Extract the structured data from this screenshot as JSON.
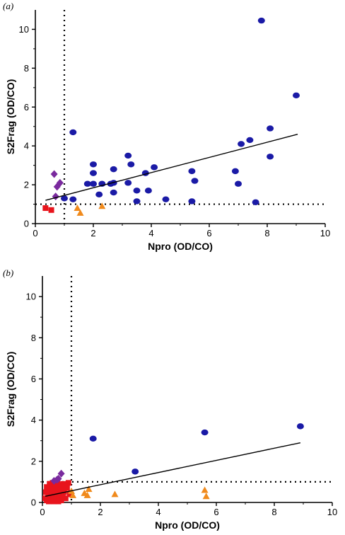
{
  "chart_data": [
    {
      "panel_label": "(a)",
      "type": "scatter",
      "xlabel": "Npro (OD/CO)",
      "ylabel": "S2Frag (OD/CO)",
      "xlim": [
        0,
        10
      ],
      "ylim": [
        0,
        11
      ],
      "xticks": [
        0,
        2,
        4,
        6,
        8,
        10
      ],
      "yticks": [
        0,
        2,
        4,
        6,
        8,
        10
      ],
      "cutoff_x": 1,
      "cutoff_y": 1,
      "regression": {
        "x": [
          0.35,
          9.05
        ],
        "y": [
          1.2,
          4.6
        ]
      },
      "colors": {
        "blue": "#1a1aa6",
        "red": "#e8141c",
        "purple": "#7a2a9e",
        "orange": "#f08a1c"
      },
      "series": [
        {
          "marker": "circle",
          "color": "blue",
          "points": [
            [
              1.0,
              1.3
            ],
            [
              1.3,
              1.25
            ],
            [
              1.3,
              4.7
            ],
            [
              1.8,
              2.05
            ],
            [
              2.0,
              2.05
            ],
            [
              2.0,
              2.6
            ],
            [
              2.0,
              3.05
            ],
            [
              2.2,
              1.5
            ],
            [
              2.3,
              2.05
            ],
            [
              2.6,
              2.05
            ],
            [
              2.7,
              2.1
            ],
            [
              2.7,
              1.6
            ],
            [
              2.7,
              2.8
            ],
            [
              3.2,
              2.1
            ],
            [
              3.2,
              3.5
            ],
            [
              3.3,
              3.05
            ],
            [
              3.5,
              1.15
            ],
            [
              3.5,
              1.7
            ],
            [
              3.8,
              2.6
            ],
            [
              3.9,
              1.7
            ],
            [
              4.1,
              2.9
            ],
            [
              4.5,
              1.25
            ],
            [
              5.4,
              2.7
            ],
            [
              5.4,
              1.15
            ],
            [
              5.5,
              2.2
            ],
            [
              6.9,
              2.7
            ],
            [
              7.0,
              2.05
            ],
            [
              7.1,
              4.1
            ],
            [
              7.4,
              4.3
            ],
            [
              7.6,
              1.1
            ],
            [
              7.8,
              10.45
            ],
            [
              8.1,
              3.45
            ],
            [
              8.1,
              4.9
            ],
            [
              9.0,
              6.6
            ]
          ]
        },
        {
          "marker": "square",
          "color": "red",
          "points": [
            [
              0.35,
              0.8
            ],
            [
              0.55,
              0.7
            ]
          ]
        },
        {
          "marker": "diamond",
          "color": "purple",
          "points": [
            [
              0.65,
              2.55
            ],
            [
              0.7,
              1.4
            ],
            [
              0.75,
              1.9
            ],
            [
              0.85,
              2.1
            ]
          ]
        },
        {
          "marker": "triangle",
          "color": "orange",
          "points": [
            [
              1.45,
              0.8
            ],
            [
              1.55,
              0.55
            ],
            [
              2.3,
              0.9
            ]
          ]
        }
      ]
    },
    {
      "panel_label": "(b)",
      "type": "scatter",
      "xlabel": "Npro (OD/CO)",
      "ylabel": "S2Frag (OD/CO)",
      "xlim": [
        0,
        10
      ],
      "ylim": [
        0,
        11
      ],
      "xticks": [
        0,
        2,
        4,
        6,
        8,
        10
      ],
      "yticks": [
        0,
        2,
        4,
        6,
        8,
        10
      ],
      "cutoff_x": 1,
      "cutoff_y": 1,
      "regression": {
        "x": [
          0.1,
          8.9
        ],
        "y": [
          0.3,
          2.9
        ]
      },
      "colors": {
        "blue": "#1a1aa6",
        "red": "#e8141c",
        "purple": "#7a2a9e",
        "orange": "#f08a1c"
      },
      "series": [
        {
          "marker": "circle",
          "color": "blue",
          "points": [
            [
              1.75,
              3.1
            ],
            [
              3.2,
              1.5
            ],
            [
              5.6,
              3.4
            ],
            [
              8.9,
              3.7
            ]
          ]
        },
        {
          "marker": "square",
          "color": "red",
          "points": [
            [
              0.1,
              0.2
            ],
            [
              0.12,
              0.5
            ],
            [
              0.15,
              0.1
            ],
            [
              0.2,
              0.35
            ],
            [
              0.2,
              0.7
            ],
            [
              0.22,
              0.05
            ],
            [
              0.25,
              0.5
            ],
            [
              0.28,
              0.25
            ],
            [
              0.3,
              0.8
            ],
            [
              0.3,
              0.1
            ],
            [
              0.33,
              0.6
            ],
            [
              0.35,
              0.4
            ],
            [
              0.38,
              0.2
            ],
            [
              0.4,
              0.9
            ],
            [
              0.4,
              0.05
            ],
            [
              0.42,
              0.55
            ],
            [
              0.45,
              0.3
            ],
            [
              0.48,
              0.75
            ],
            [
              0.5,
              0.15
            ],
            [
              0.5,
              0.45
            ],
            [
              0.52,
              0.95
            ],
            [
              0.55,
              0.6
            ],
            [
              0.58,
              0.25
            ],
            [
              0.6,
              0.8
            ],
            [
              0.62,
              0.4
            ],
            [
              0.65,
              0.1
            ],
            [
              0.68,
              0.65
            ],
            [
              0.7,
              0.3
            ],
            [
              0.72,
              0.9
            ],
            [
              0.75,
              0.5
            ],
            [
              0.8,
              0.2
            ],
            [
              0.85,
              0.7
            ],
            [
              0.9,
              0.95
            ],
            [
              0.95,
              0.4
            ],
            [
              0.25,
              0.9
            ],
            [
              0.15,
              0.75
            ],
            [
              0.35,
              0.95
            ],
            [
              0.55,
              0.05
            ],
            [
              0.45,
              0.85
            ],
            [
              0.65,
              0.85
            ]
          ]
        },
        {
          "marker": "diamond",
          "color": "purple",
          "points": [
            [
              0.4,
              1.05
            ],
            [
              0.5,
              1.1
            ],
            [
              0.55,
              1.15
            ],
            [
              0.65,
              1.4
            ]
          ]
        },
        {
          "marker": "triangle",
          "color": "orange",
          "points": [
            [
              1.0,
              0.55
            ],
            [
              1.05,
              0.35
            ],
            [
              1.45,
              0.45
            ],
            [
              1.55,
              0.35
            ],
            [
              1.6,
              0.65
            ],
            [
              2.5,
              0.4
            ],
            [
              5.6,
              0.6
            ],
            [
              5.65,
              0.3
            ]
          ]
        }
      ]
    }
  ]
}
